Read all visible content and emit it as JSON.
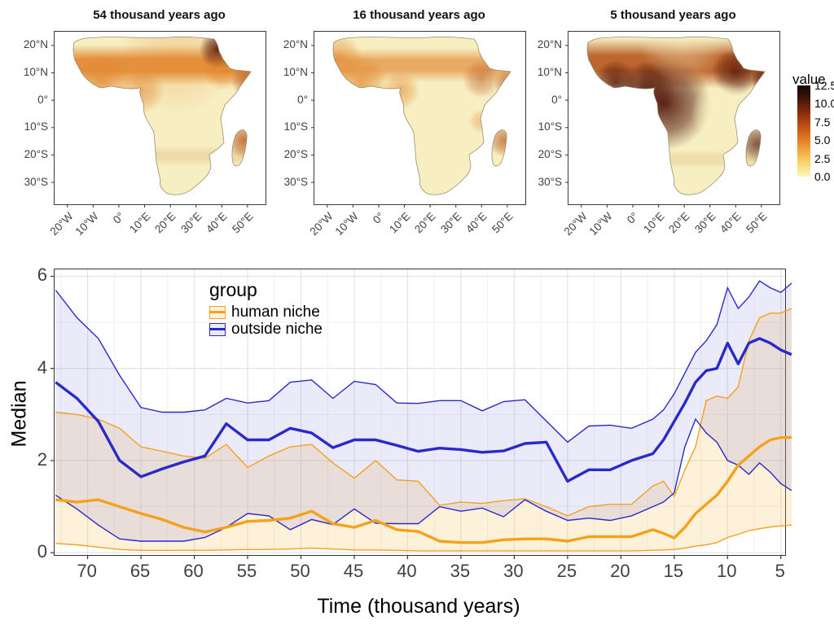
{
  "maps": {
    "titles": [
      "54 thousand years ago",
      "16 thousand years ago",
      "5 thousand years ago"
    ],
    "y_ticks": [
      "20°N",
      "10°N",
      "0°",
      "10°S",
      "20°S",
      "30°S"
    ],
    "x_ticks": [
      "20°W",
      "10°W",
      "0°",
      "10°E",
      "20°E",
      "30°E",
      "40°E",
      "50°E"
    ],
    "palette": {
      "low": "#F7EEC1",
      "mid": "#E2862E",
      "high": "#B34E14",
      "dark": "#4F1206",
      "tan": "#D9B878"
    },
    "colorbar": {
      "title": "value",
      "ticks": [
        "12.5",
        "10.0",
        "7.5",
        "5.0",
        "2.5",
        "0.0"
      ],
      "gradient_bottom_to_top": [
        "#FDF6BC",
        "#FAE38D",
        "#F7CB63",
        "#F0AC44",
        "#E78C2D",
        "#D96E1E",
        "#C25314",
        "#A23B10",
        "#7C280C",
        "#541A0B",
        "#2E0E06",
        "#180803"
      ]
    }
  },
  "chart_data": [
    {
      "type": "heatmap",
      "title": "54 thousand years ago",
      "x_ticks": [
        "20°W",
        "10°W",
        "0°",
        "10°E",
        "20°E",
        "30°E",
        "40°E",
        "50°E"
      ],
      "y_ticks": [
        "20°N",
        "10°N",
        "0°",
        "10°S",
        "20°S",
        "30°S"
      ],
      "colorbar_title": "value",
      "colorbar_ticks": [
        12.5,
        10.0,
        7.5,
        5.0,
        2.5,
        0.0
      ]
    },
    {
      "type": "heatmap",
      "title": "16 thousand years ago",
      "x_ticks": [
        "20°W",
        "10°W",
        "0°",
        "10°E",
        "20°E",
        "30°E",
        "40°E",
        "50°E"
      ],
      "y_ticks": [
        "20°N",
        "10°N",
        "0°",
        "10°S",
        "20°S",
        "30°S"
      ],
      "colorbar_title": "value",
      "colorbar_ticks": [
        12.5,
        10.0,
        7.5,
        5.0,
        2.5,
        0.0
      ]
    },
    {
      "type": "heatmap",
      "title": "5 thousand years ago",
      "x_ticks": [
        "20°W",
        "10°W",
        "0°",
        "10°E",
        "20°E",
        "30°E",
        "40°E",
        "50°E"
      ],
      "y_ticks": [
        "20°N",
        "10°N",
        "0°",
        "10°S",
        "20°S",
        "30°S"
      ],
      "colorbar_title": "value",
      "colorbar_ticks": [
        12.5,
        10.0,
        7.5,
        5.0,
        2.5,
        0.0
      ]
    },
    {
      "type": "line",
      "title": "",
      "xlabel": "Time (thousand years)",
      "ylabel": "Median",
      "x_axis_reversed": true,
      "xlim": [
        73.1,
        4.6
      ],
      "ylim": [
        -0.05,
        6.15
      ],
      "x_ticks": [
        "70",
        "65",
        "60",
        "55",
        "50",
        "45",
        "40",
        "35",
        "30",
        "25",
        "20",
        "15",
        "10",
        "5"
      ],
      "x_tick_values": [
        70,
        65,
        60,
        55,
        50,
        45,
        40,
        35,
        30,
        25,
        20,
        15,
        10,
        5
      ],
      "y_ticks": [
        "0",
        "2",
        "4",
        "6"
      ],
      "y_tick_values": [
        0,
        2,
        4,
        6
      ],
      "grid": true,
      "legend": {
        "title": "group",
        "position": "inside-top-left",
        "entries": [
          {
            "label": "human niche"
          },
          {
            "label": "outside niche"
          }
        ]
      },
      "x": [
        73,
        71,
        69,
        67,
        65,
        63,
        61,
        59,
        57,
        55,
        53,
        51,
        49,
        47,
        45,
        43,
        41,
        39,
        37,
        35,
        33,
        31,
        29,
        27,
        25,
        23,
        21,
        19,
        17,
        16,
        15,
        14,
        13,
        12,
        11,
        10,
        9,
        8,
        7,
        6,
        5,
        4
      ],
      "series": [
        {
          "name": "human niche",
          "color": "#F5A11C",
          "band_fill": "rgba(245,190,80,0.22)",
          "median": [
            1.15,
            1.1,
            1.15,
            1.0,
            0.85,
            0.72,
            0.55,
            0.45,
            0.55,
            0.68,
            0.7,
            0.75,
            0.9,
            0.63,
            0.55,
            0.7,
            0.5,
            0.46,
            0.25,
            0.22,
            0.22,
            0.28,
            0.3,
            0.3,
            0.25,
            0.35,
            0.35,
            0.35,
            0.5,
            0.42,
            0.32,
            0.55,
            0.85,
            1.05,
            1.25,
            1.55,
            1.9,
            2.1,
            2.3,
            2.45,
            2.5,
            2.5
          ],
          "lower": [
            0.2,
            0.17,
            0.12,
            0.07,
            0.05,
            0.05,
            0.05,
            0.05,
            0.06,
            0.07,
            0.07,
            0.08,
            0.1,
            0.08,
            0.06,
            0.06,
            0.05,
            0.04,
            0.04,
            0.04,
            0.04,
            0.04,
            0.04,
            0.04,
            0.04,
            0.04,
            0.04,
            0.04,
            0.05,
            0.06,
            0.07,
            0.1,
            0.14,
            0.17,
            0.22,
            0.33,
            0.4,
            0.48,
            0.52,
            0.56,
            0.58,
            0.6
          ],
          "upper": [
            3.05,
            3.0,
            2.9,
            2.7,
            2.3,
            2.2,
            2.1,
            2.05,
            2.35,
            1.85,
            2.1,
            2.3,
            2.35,
            1.95,
            1.62,
            2.0,
            1.58,
            1.55,
            1.03,
            1.1,
            1.07,
            1.13,
            1.17,
            1.0,
            0.8,
            1.0,
            1.05,
            1.05,
            1.45,
            1.55,
            1.22,
            1.8,
            2.3,
            3.3,
            3.4,
            3.35,
            3.6,
            4.6,
            5.1,
            5.2,
            5.2,
            5.3
          ]
        },
        {
          "name": "outside niche",
          "color": "#2A2AC8",
          "band_fill": "rgba(90,90,205,0.13)",
          "median": [
            3.7,
            3.35,
            2.85,
            2.0,
            1.65,
            1.82,
            1.97,
            2.1,
            2.8,
            2.45,
            2.45,
            2.7,
            2.6,
            2.28,
            2.45,
            2.45,
            2.33,
            2.2,
            2.27,
            2.24,
            2.18,
            2.21,
            2.37,
            2.4,
            1.55,
            1.8,
            1.8,
            2.0,
            2.15,
            2.45,
            2.85,
            3.25,
            3.7,
            3.95,
            4.0,
            4.55,
            4.1,
            4.55,
            4.65,
            4.55,
            4.4,
            4.3
          ],
          "lower": [
            1.25,
            0.95,
            0.6,
            0.3,
            0.25,
            0.25,
            0.25,
            0.33,
            0.55,
            0.85,
            0.8,
            0.5,
            0.72,
            0.61,
            0.95,
            0.64,
            0.63,
            0.63,
            1.0,
            0.9,
            0.97,
            0.78,
            1.15,
            0.9,
            0.7,
            0.75,
            0.7,
            0.8,
            1.0,
            1.1,
            1.3,
            2.3,
            2.9,
            2.6,
            2.4,
            2.0,
            1.9,
            1.7,
            1.95,
            1.75,
            1.5,
            1.35
          ],
          "upper": [
            5.7,
            5.1,
            4.65,
            3.85,
            3.15,
            3.05,
            3.05,
            3.1,
            3.35,
            3.25,
            3.3,
            3.7,
            3.75,
            3.35,
            3.72,
            3.65,
            3.25,
            3.24,
            3.3,
            3.3,
            3.08,
            3.28,
            3.32,
            2.86,
            2.4,
            2.75,
            2.77,
            2.7,
            2.9,
            3.1,
            3.45,
            3.9,
            4.35,
            4.6,
            4.95,
            5.75,
            5.3,
            5.55,
            5.9,
            5.75,
            5.65,
            5.85
          ]
        }
      ]
    }
  ]
}
